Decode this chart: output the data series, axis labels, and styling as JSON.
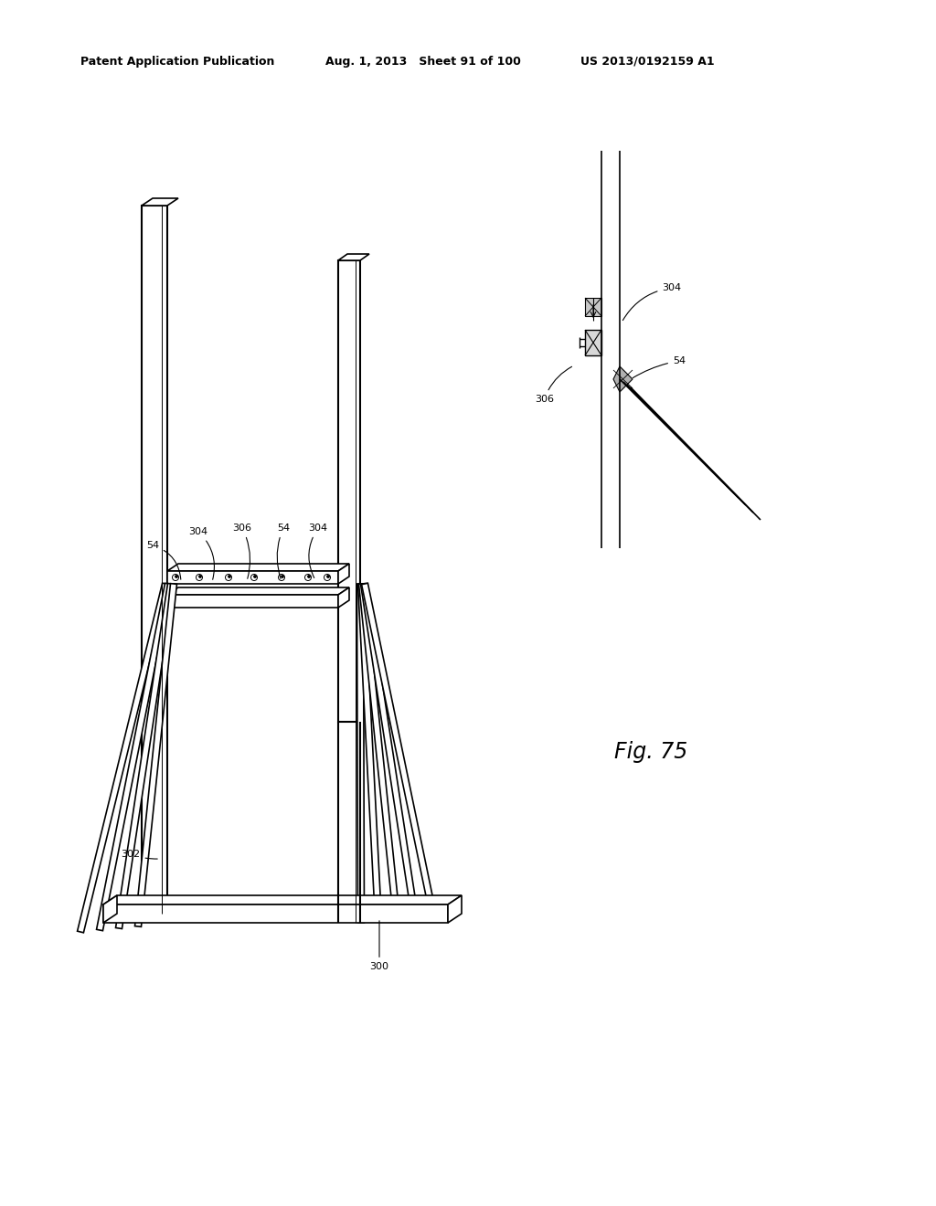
{
  "title_left": "Patent Application Publication",
  "title_mid": "Aug. 1, 2013   Sheet 91 of 100",
  "title_right": "US 2013/0192159 A1",
  "fig_label": "Fig. 75",
  "bg_color": "#ffffff",
  "lc": "#000000"
}
